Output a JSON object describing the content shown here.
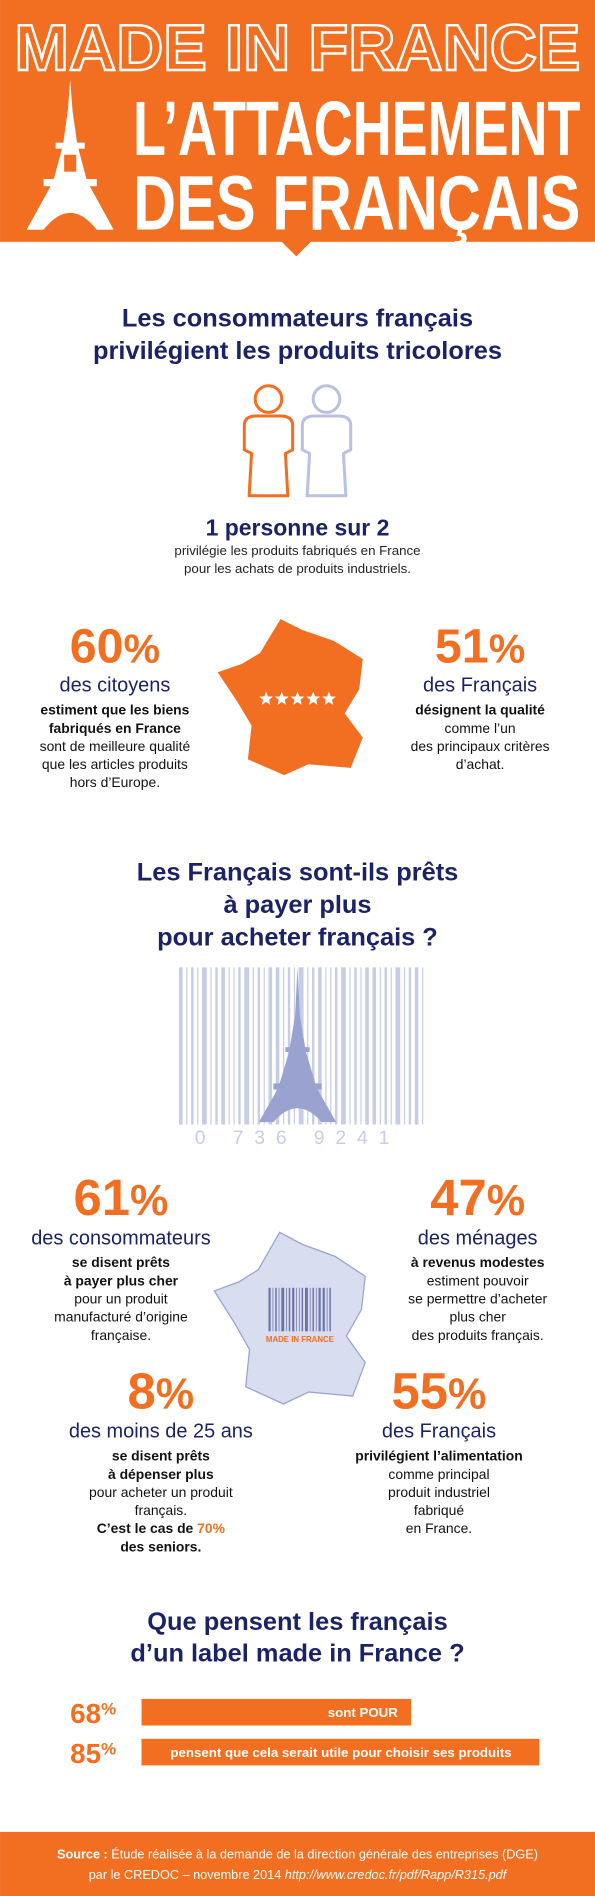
{
  "header": {
    "line1": "MADE IN FRANCE",
    "line2": "L’ATTACHEMENT",
    "line3": "DES FRANÇAIS"
  },
  "section1": {
    "title": [
      "Les consommateurs français",
      "privilégient les produits tricolores"
    ],
    "headline": "1 personne sur 2",
    "text": [
      "privilégie les produits fabriqués en France",
      "pour les achats de produits industriels."
    ],
    "stats": [
      {
        "value": 60,
        "unit": "%",
        "label": "des citoyens",
        "lines": [
          {
            "text": "estiment que les biens",
            "bold": true
          },
          {
            "text": "fabriqués en France",
            "bold": true
          },
          {
            "text": "sont de meilleure qualité",
            "bold": false
          },
          {
            "text": "que les articles produits",
            "bold": false
          },
          {
            "text": "hors d’Europe.",
            "bold": false
          }
        ]
      },
      {
        "value": 51,
        "unit": "%",
        "label": "des Français",
        "lines": [
          {
            "text": "désignent la qualité",
            "bold": true
          },
          {
            "text": "comme l’un",
            "bold": false
          },
          {
            "text": "des principaux critères",
            "bold": false
          },
          {
            "text": "d’achat.",
            "bold": false
          }
        ]
      }
    ]
  },
  "section2": {
    "title": [
      "Les Français sont-ils prêts",
      "à payer plus",
      "pour acheter français ?"
    ],
    "barcode_digits": "0 736 9241",
    "map_label": "MADE IN FRANCE",
    "stats": [
      {
        "value": 61,
        "unit": "%",
        "label": "des consommateurs",
        "lines": [
          {
            "text": "se disent prêts",
            "bold": true
          },
          {
            "text": "à payer plus cher",
            "bold": true
          },
          {
            "text": "pour un produit",
            "bold": false
          },
          {
            "text": "manufacturé d’origine",
            "bold": false
          },
          {
            "text": "française.",
            "bold": false
          }
        ]
      },
      {
        "value": 47,
        "unit": "%",
        "label": "des ménages",
        "lines": [
          {
            "text": "à revenus modestes",
            "bold": true
          },
          {
            "text": "estiment pouvoir",
            "bold": false
          },
          {
            "text": "se permettre d’acheter",
            "bold": false
          },
          {
            "text": "plus cher",
            "bold": false
          },
          {
            "text": "des produits français.",
            "bold": false
          }
        ]
      },
      {
        "value": 8,
        "unit": "%",
        "label": "des moins de 25 ans",
        "lines": [
          {
            "text": "se disent prêts",
            "bold": true
          },
          {
            "text": "à dépenser plus",
            "bold": true
          },
          {
            "text": "pour acheter un produit",
            "bold": false
          },
          {
            "text": "français.",
            "bold": false
          },
          {
            "text": "C’est le cas de ",
            "highlight": "70%",
            "bold": true
          },
          {
            "text": "des seniors.",
            "bold": true
          }
        ]
      },
      {
        "value": 55,
        "unit": "%",
        "label": "des Français",
        "lines": [
          {
            "text": "privilégient l’alimentation",
            "bold": true
          },
          {
            "text": "comme principal",
            "bold": false
          },
          {
            "text": "produit industriel",
            "bold": false
          },
          {
            "text": "fabriqué",
            "bold": false
          },
          {
            "text": "en France.",
            "bold": false
          }
        ]
      }
    ]
  },
  "section3": {
    "title": [
      "Que pensent les français",
      "d’un label made in France ?"
    ],
    "items": [
      {
        "value": 68,
        "unit": "%",
        "text": "sont POUR"
      },
      {
        "value": 85,
        "unit": "%",
        "text": "pensent que cela serait utile pour choisir ses produits"
      }
    ]
  },
  "footer": {
    "label": "Source :",
    "line1": " Étude réalisée à la demande de la direction générale des entreprises (DGE)",
    "line2": "par le CREDOC – novembre 2014  ",
    "url": "http://www.credoc.fr/pdf/Rapp/R315.pdf"
  }
}
